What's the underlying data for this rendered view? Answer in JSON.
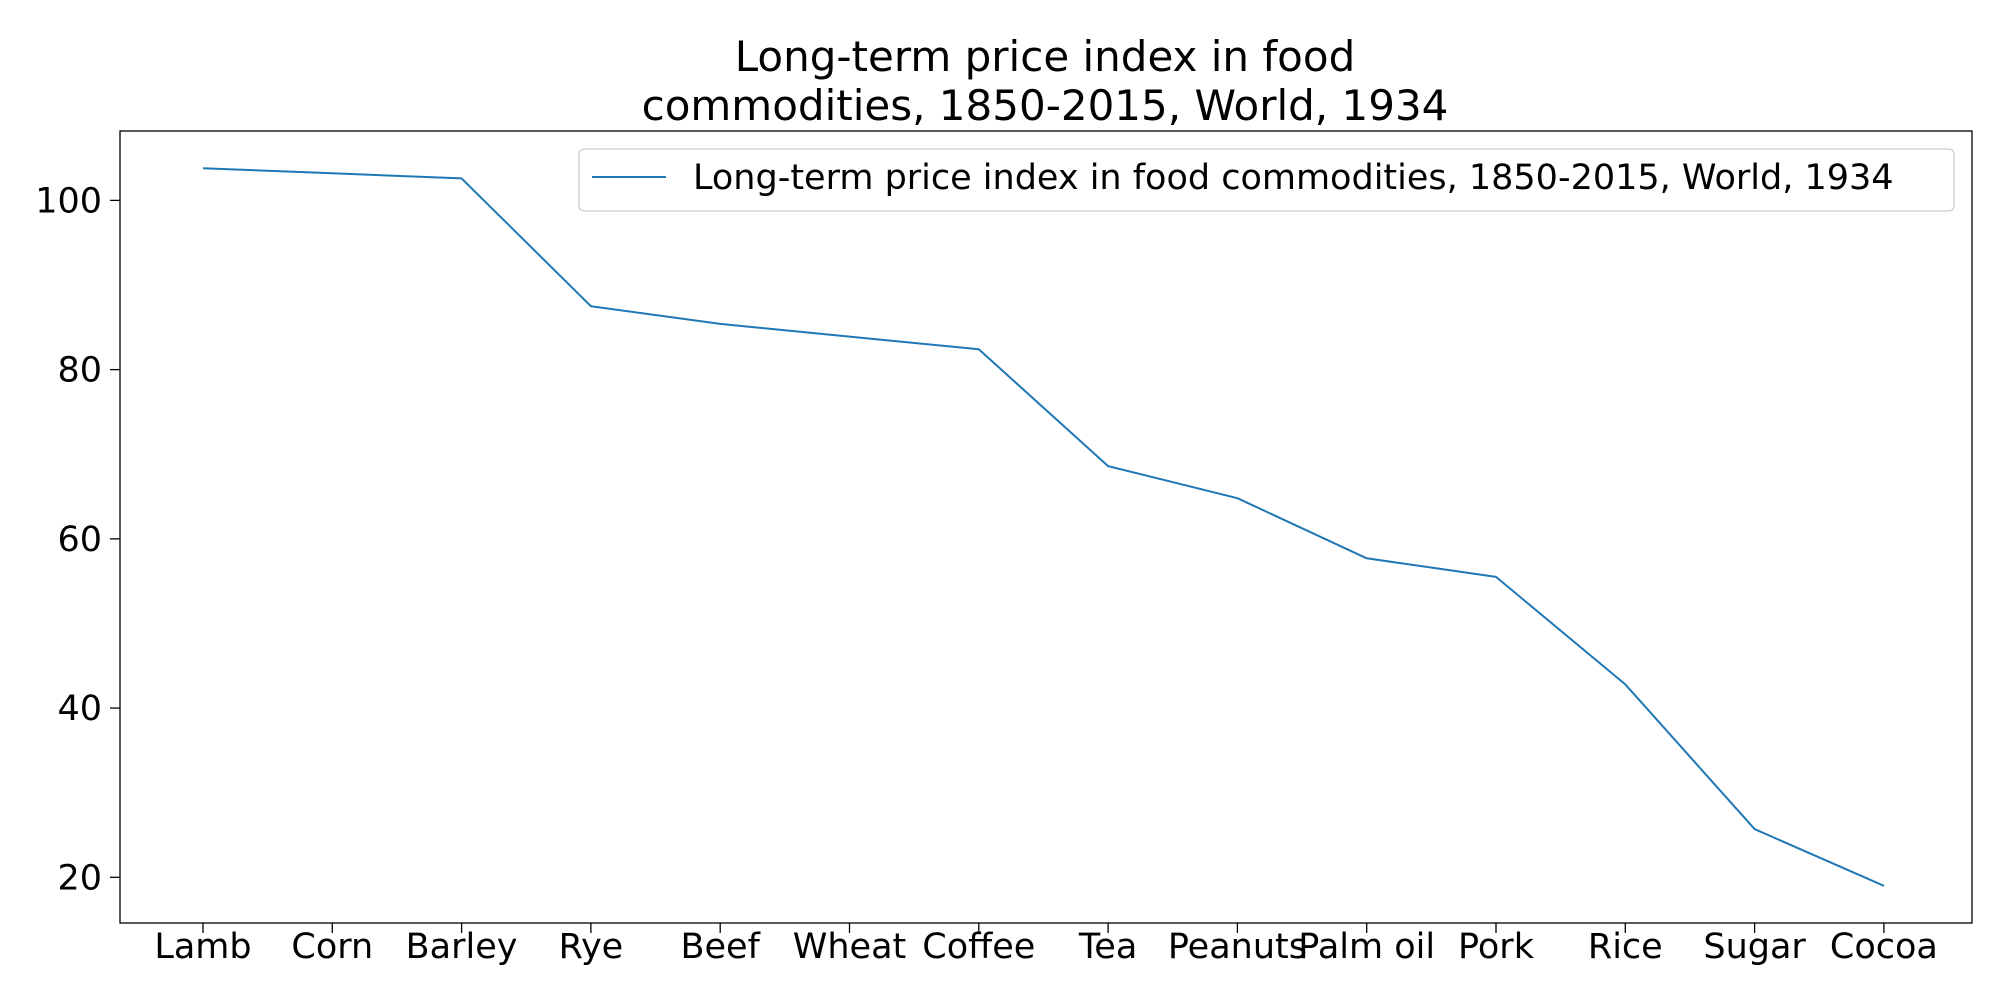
{
  "chart_data": {
    "type": "line",
    "title": "Long-term price index in food commodities, 1850-2015, World, 1934",
    "title_lines": [
      "Long-term price index in food",
      "commodities, 1850-2015, World, 1934"
    ],
    "categories": [
      "Lamb",
      "Corn",
      "Barley",
      "Rye",
      "Beef",
      "Wheat",
      "Coffee",
      "Tea",
      "Peanuts",
      "Palm oil",
      "Pork",
      "Rice",
      "Sugar",
      "Cocoa"
    ],
    "series": [
      {
        "name": "Long-term price index in food commodities, 1850-2015, World, 1934",
        "values": [
          103.8,
          103.2,
          102.6,
          87.5,
          85.4,
          83.9,
          82.4,
          68.6,
          64.8,
          57.7,
          55.5,
          42.8,
          25.7,
          19.0
        ],
        "color": "#1f77b4"
      }
    ],
    "yticks": [
      20,
      40,
      60,
      80,
      100
    ],
    "ylim": [
      14.6,
      108.2
    ],
    "xlabel": "",
    "ylabel": "",
    "grid": false,
    "legend": "top-right"
  }
}
